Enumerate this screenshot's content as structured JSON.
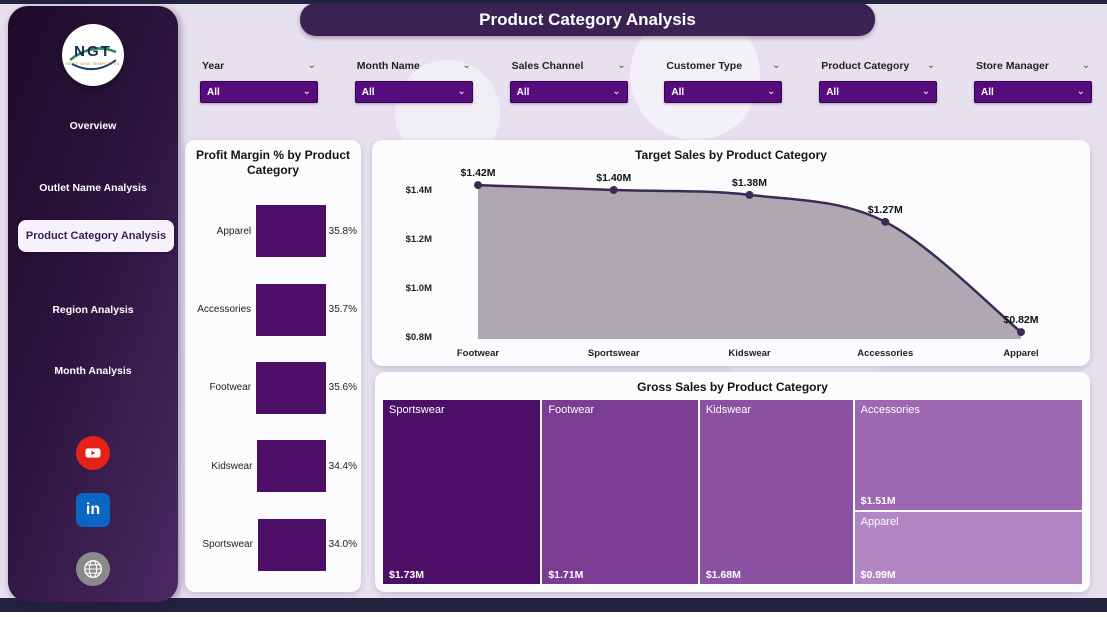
{
  "app": {
    "title": "Product Category Analysis"
  },
  "sidebar": {
    "logo_text": "NGT",
    "logo_sub": "NEXT GEN TEMPLATES",
    "items": [
      {
        "label": "Overview",
        "active": false
      },
      {
        "label": "Outlet Name Analysis",
        "active": false
      },
      {
        "label": "Product Category Analysis",
        "active": true
      },
      {
        "label": "Region Analysis",
        "active": false
      },
      {
        "label": "Month Analysis",
        "active": false
      }
    ],
    "social": [
      "youtube-icon",
      "linkedin-icon",
      "web-icon"
    ]
  },
  "filters": [
    {
      "label": "Year",
      "value": "All"
    },
    {
      "label": "Month Name",
      "value": "All"
    },
    {
      "label": "Sales Channel",
      "value": "All"
    },
    {
      "label": "Customer Type",
      "value": "All"
    },
    {
      "label": "Product Category",
      "value": "All"
    },
    {
      "label": "Store Manager",
      "value": "All"
    }
  ],
  "colors": {
    "accent": "#4c0e66",
    "area_fill": "#a79fa9",
    "line": "#3d2a54",
    "page_bg": "#e7e1ef",
    "sidebar_dark": "#1c0b27",
    "header_bg": "#3a2253",
    "dropdown_bg": "#560c7c",
    "band": "#23233f",
    "youtube_red": "#e62117",
    "linkedin_blue": "#0a66c2"
  },
  "chart_data": [
    {
      "type": "bar",
      "orientation": "horizontal",
      "title": "Profit Margin % by Product Category",
      "categories": [
        "Apparel",
        "Accessories",
        "Footwear",
        "Kidswear",
        "Sportswear"
      ],
      "values": [
        35.8,
        35.7,
        35.6,
        34.4,
        34.0
      ],
      "labels": [
        "35.8%",
        "35.7%",
        "35.6%",
        "34.4%",
        "34.0%"
      ],
      "xlabel": "",
      "ylabel": "",
      "xlim": [
        0,
        36
      ],
      "grid": false,
      "legend": false
    },
    {
      "type": "area",
      "title": "Target Sales by Product Category",
      "categories": [
        "Footwear",
        "Sportswear",
        "Kidswear",
        "Accessories",
        "Apparel"
      ],
      "values": [
        1.42,
        1.4,
        1.38,
        1.27,
        0.82
      ],
      "labels": [
        "$1.42M",
        "$1.40M",
        "$1.38M",
        "$1.27M",
        "$0.82M"
      ],
      "y_ticks": [
        "$1.4M",
        "$1.2M",
        "$1.0M",
        "$0.8M"
      ],
      "ylim": [
        0.8,
        1.5
      ],
      "xlabel": "",
      "ylabel": "",
      "grid": false,
      "legend": false
    },
    {
      "type": "treemap",
      "title": "Gross Sales by Product Category",
      "items": [
        {
          "name": "Sportswear",
          "label": "$1.73M",
          "value": 1.73,
          "color": "#4c0e66"
        },
        {
          "name": "Footwear",
          "label": "$1.71M",
          "value": 1.71,
          "color": "#7b3c93"
        },
        {
          "name": "Kidswear",
          "label": "$1.68M",
          "value": 1.68,
          "color": "#8a50a2"
        },
        {
          "name": "Accessories",
          "label": "$1.51M",
          "value": 1.51,
          "color": "#9d68b1"
        },
        {
          "name": "Apparel",
          "label": "$0.99M",
          "value": 0.99,
          "color": "#b286c3"
        }
      ]
    }
  ]
}
